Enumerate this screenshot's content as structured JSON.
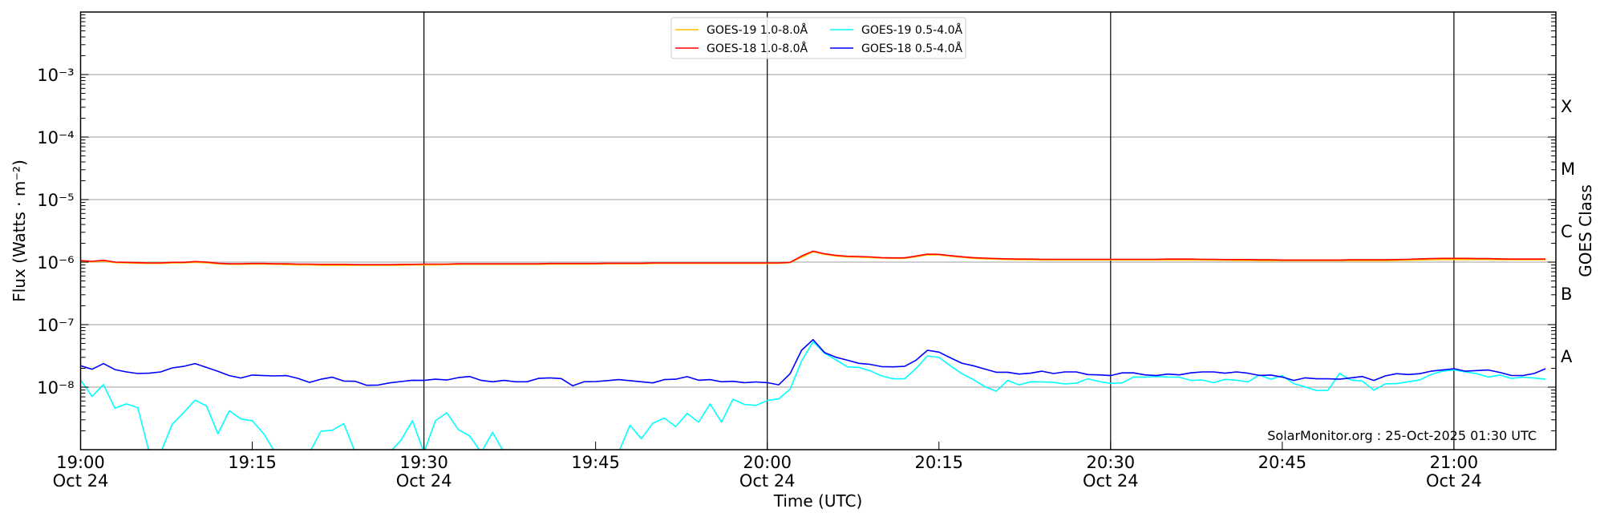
{
  "chart_data": {
    "type": "line",
    "xlabel": "Time (UTC)",
    "ylabel": "Flux (Watts · m⁻²)",
    "right_ylabel": "GOES Class",
    "y_scale": "log",
    "ylim": [
      1e-09,
      0.01
    ],
    "xlim": [
      "19:00",
      "21:09"
    ],
    "grid": "horizontal gridlines at each decade; vertical black lines at half hours",
    "legend_position": "top-center",
    "xticks": [
      {
        "time": "19:00",
        "date": "Oct 24"
      },
      {
        "time": "19:15",
        "date": ""
      },
      {
        "time": "19:30",
        "date": "Oct 24"
      },
      {
        "time": "19:45",
        "date": ""
      },
      {
        "time": "20:00",
        "date": "Oct 24"
      },
      {
        "time": "20:15",
        "date": ""
      },
      {
        "time": "20:30",
        "date": "Oct 24"
      },
      {
        "time": "20:45",
        "date": ""
      },
      {
        "time": "21:00",
        "date": "Oct 24"
      }
    ],
    "vertical_lines": [
      "19:30",
      "20:00",
      "20:30",
      "21:00"
    ],
    "yticks": [
      {
        "value": 0.001,
        "label": "10⁻³"
      },
      {
        "value": 0.0001,
        "label": "10⁻⁴"
      },
      {
        "value": 1e-05,
        "label": "10⁻⁵"
      },
      {
        "value": 1e-06,
        "label": "10⁻⁶"
      },
      {
        "value": 1e-07,
        "label": "10⁻⁷"
      },
      {
        "value": 1e-08,
        "label": "10⁻⁸"
      }
    ],
    "goes_classes": [
      {
        "label": "X",
        "value": 0.000316
      },
      {
        "label": "M",
        "value": 3.16e-05
      },
      {
        "label": "C",
        "value": 3.16e-06
      },
      {
        "label": "B",
        "value": 3.16e-07
      },
      {
        "label": "A",
        "value": 3.16e-08
      }
    ],
    "annotation": "SolarMonitor.org : 25-Oct-2025 01:30 UTC",
    "x": [
      "19:00",
      "19:01",
      "19:02",
      "19:03",
      "19:04",
      "19:05",
      "19:06",
      "19:07",
      "19:08",
      "19:09",
      "19:10",
      "19:11",
      "19:12",
      "19:13",
      "19:14",
      "19:15",
      "19:16",
      "19:17",
      "19:18",
      "19:19",
      "19:20",
      "19:21",
      "19:22",
      "19:23",
      "19:24",
      "19:25",
      "19:26",
      "19:27",
      "19:28",
      "19:29",
      "19:30",
      "19:31",
      "19:32",
      "19:33",
      "19:34",
      "19:35",
      "19:36",
      "19:37",
      "19:38",
      "19:39",
      "19:40",
      "19:41",
      "19:42",
      "19:43",
      "19:44",
      "19:45",
      "19:46",
      "19:47",
      "19:48",
      "19:49",
      "19:50",
      "19:51",
      "19:52",
      "19:53",
      "19:54",
      "19:55",
      "19:56",
      "19:57",
      "19:58",
      "19:59",
      "20:00",
      "20:01",
      "20:02",
      "20:03",
      "20:04",
      "20:05",
      "20:06",
      "20:07",
      "20:08",
      "20:09",
      "20:10",
      "20:11",
      "20:12",
      "20:13",
      "20:14",
      "20:15",
      "20:16",
      "20:17",
      "20:18",
      "20:19",
      "20:20",
      "20:21",
      "20:22",
      "20:23",
      "20:24",
      "20:25",
      "20:26",
      "20:27",
      "20:28",
      "20:29",
      "20:30",
      "20:31",
      "20:32",
      "20:33",
      "20:34",
      "20:35",
      "20:36",
      "20:37",
      "20:38",
      "20:39",
      "20:40",
      "20:41",
      "20:42",
      "20:43",
      "20:44",
      "20:45",
      "20:46",
      "20:47",
      "20:48",
      "20:49",
      "20:50",
      "20:51",
      "20:52",
      "20:53",
      "20:54",
      "20:55",
      "20:56",
      "20:57",
      "20:58",
      "20:59",
      "21:00",
      "21:01",
      "21:02",
      "21:03",
      "21:04",
      "21:05",
      "21:06",
      "21:07",
      "21:08"
    ],
    "series": [
      {
        "name": "GOES-19 1.0-8.0Å",
        "color": "#ffc000",
        "values": [
          1.03e-06,
          1.01e-06,
          1.04e-06,
          9.8e-07,
          9.7e-07,
          9.6e-07,
          9.5e-07,
          9.5e-07,
          9.7e-07,
          9.7e-07,
          9.9e-07,
          9.7e-07,
          9.4e-07,
          9.2e-07,
          9.2e-07,
          9.3e-07,
          9.3e-07,
          9.2e-07,
          9.1e-07,
          9e-07,
          9e-07,
          8.9e-07,
          8.9e-07,
          8.9e-07,
          8.9e-07,
          8.9e-07,
          8.9e-07,
          8.9e-07,
          8.9e-07,
          9e-07,
          9e-07,
          9e-07,
          9.1e-07,
          9.2e-07,
          9.2e-07,
          9.2e-07,
          9.2e-07,
          9.2e-07,
          9.2e-07,
          9.2e-07,
          9.2e-07,
          9.3e-07,
          9.3e-07,
          9.3e-07,
          9.3e-07,
          9.3e-07,
          9.4e-07,
          9.4e-07,
          9.4e-07,
          9.4e-07,
          9.5e-07,
          9.5e-07,
          9.5e-07,
          9.5e-07,
          9.5e-07,
          9.5e-07,
          9.5e-07,
          9.5e-07,
          9.5e-07,
          9.5e-07,
          9.5e-07,
          9.6e-07,
          9.8e-07,
          1.2e-06,
          1.46e-06,
          1.33e-06,
          1.25e-06,
          1.21e-06,
          1.2e-06,
          1.18e-06,
          1.16e-06,
          1.15e-06,
          1.15e-06,
          1.22e-06,
          1.31e-06,
          1.3e-06,
          1.24e-06,
          1.19e-06,
          1.15e-06,
          1.13e-06,
          1.11e-06,
          1.1e-06,
          1.09e-06,
          1.09e-06,
          1.08e-06,
          1.08e-06,
          1.08e-06,
          1.08e-06,
          1.08e-06,
          1.08e-06,
          1.08e-06,
          1.08e-06,
          1.08e-06,
          1.08e-06,
          1.08e-06,
          1.08e-06,
          1.08e-06,
          1.08e-06,
          1.08e-06,
          1.07e-06,
          1.07e-06,
          1.06e-06,
          1.06e-06,
          1.05e-06,
          1.05e-06,
          1.05e-06,
          1.05e-06,
          1.05e-06,
          1.05e-06,
          1.05e-06,
          1.05e-06,
          1.05e-06,
          1.05e-06,
          1.05e-06,
          1.05e-06,
          1.06e-06,
          1.07e-06,
          1.08e-06,
          1.09e-06,
          1.1e-06,
          1.1e-06,
          1.1e-06,
          1.1e-06,
          1.1e-06,
          1.09e-06,
          1.09e-06,
          1.09e-06,
          1.09e-06,
          1.09e-06
        ]
      },
      {
        "name": "GOES-18 1.0-8.0Å",
        "color": "#ff0000",
        "values": [
          1.06e-06,
          1.03e-06,
          1.07e-06,
          1e-06,
          9.9e-07,
          9.8e-07,
          9.7e-07,
          9.7e-07,
          9.9e-07,
          9.9e-07,
          1.02e-06,
          1e-06,
          9.6e-07,
          9.4e-07,
          9.4e-07,
          9.5e-07,
          9.5e-07,
          9.4e-07,
          9.4e-07,
          9.3e-07,
          9.3e-07,
          9.2e-07,
          9.2e-07,
          9.2e-07,
          9.1e-07,
          9.1e-07,
          9.1e-07,
          9.1e-07,
          9.2e-07,
          9.2e-07,
          9.3e-07,
          9.3e-07,
          9.3e-07,
          9.4e-07,
          9.4e-07,
          9.4e-07,
          9.4e-07,
          9.4e-07,
          9.4e-07,
          9.4e-07,
          9.4e-07,
          9.5e-07,
          9.5e-07,
          9.5e-07,
          9.5e-07,
          9.5e-07,
          9.6e-07,
          9.6e-07,
          9.6e-07,
          9.6e-07,
          9.7e-07,
          9.7e-07,
          9.7e-07,
          9.7e-07,
          9.7e-07,
          9.7e-07,
          9.7e-07,
          9.7e-07,
          9.7e-07,
          9.7e-07,
          9.7e-07,
          9.7e-07,
          9.9e-07,
          1.25e-06,
          1.5e-06,
          1.36e-06,
          1.28e-06,
          1.24e-06,
          1.23e-06,
          1.21e-06,
          1.18e-06,
          1.17e-06,
          1.17e-06,
          1.25e-06,
          1.34e-06,
          1.33e-06,
          1.27e-06,
          1.22e-06,
          1.18e-06,
          1.16e-06,
          1.14e-06,
          1.13e-06,
          1.12e-06,
          1.12e-06,
          1.11e-06,
          1.11e-06,
          1.11e-06,
          1.11e-06,
          1.11e-06,
          1.11e-06,
          1.11e-06,
          1.11e-06,
          1.11e-06,
          1.11e-06,
          1.11e-06,
          1.12e-06,
          1.12e-06,
          1.12e-06,
          1.11e-06,
          1.11e-06,
          1.1e-06,
          1.1e-06,
          1.1e-06,
          1.09e-06,
          1.09e-06,
          1.08e-06,
          1.08e-06,
          1.08e-06,
          1.08e-06,
          1.08e-06,
          1.08e-06,
          1.09e-06,
          1.09e-06,
          1.09e-06,
          1.09e-06,
          1.1e-06,
          1.11e-06,
          1.13e-06,
          1.14e-06,
          1.15e-06,
          1.15e-06,
          1.15e-06,
          1.14e-06,
          1.14e-06,
          1.13e-06,
          1.12e-06,
          1.12e-06,
          1.12e-06,
          1.12e-06
        ]
      },
      {
        "name": "GOES-19 0.5-4.0Å",
        "color": "#00ffff",
        "values": [
          1.3e-08,
          7.1e-09,
          1.1e-08,
          4.6e-09,
          5.4e-09,
          4.7e-09,
          5e-10,
          5e-10,
          2.55e-09,
          3.9e-09,
          6.2e-09,
          5e-09,
          1.8e-09,
          4.2e-09,
          3.1e-09,
          2.9e-09,
          1.8e-09,
          5e-10,
          5e-10,
          5e-10,
          5e-10,
          1.97e-09,
          2.05e-09,
          2.6e-09,
          5e-10,
          5e-10,
          5e-10,
          5e-10,
          1.43e-09,
          2.9e-09,
          5e-10,
          2.9e-09,
          3.9e-09,
          2.1e-09,
          1.65e-09,
          5e-10,
          1.9e-09,
          5e-10,
          5e-10,
          5e-10,
          5e-10,
          5e-10,
          5e-10,
          5e-10,
          5e-10,
          5e-10,
          5e-10,
          5e-10,
          2.45e-09,
          1.5e-09,
          2.65e-09,
          3.2e-09,
          2.35e-09,
          3.8e-09,
          2.75e-09,
          5.4e-09,
          2.75e-09,
          6.4e-09,
          5.3e-09,
          5.1e-09,
          6.1e-09,
          6.5e-09,
          9.3e-09,
          2.62e-08,
          5.33e-08,
          3.49e-08,
          2.73e-08,
          2.11e-08,
          2.07e-08,
          1.82e-08,
          1.51e-08,
          1.36e-08,
          1.36e-08,
          1.99e-08,
          3.16e-08,
          2.98e-08,
          2.2e-08,
          1.64e-08,
          1.32e-08,
          1.02e-08,
          8.6e-09,
          1.28e-08,
          1.09e-08,
          1.22e-08,
          1.21e-08,
          1.19e-08,
          1.13e-08,
          1.16e-08,
          1.36e-08,
          1.23e-08,
          1.15e-08,
          1.17e-08,
          1.45e-08,
          1.44e-08,
          1.48e-08,
          1.45e-08,
          1.44e-08,
          1.28e-08,
          1.3e-08,
          1.18e-08,
          1.33e-08,
          1.29e-08,
          1.21e-08,
          1.57e-08,
          1.34e-08,
          1.53e-08,
          1.14e-08,
          1.01e-08,
          8.8e-09,
          8.9e-09,
          1.65e-08,
          1.3e-08,
          1.25e-08,
          8.9e-09,
          1.13e-08,
          1.14e-08,
          1.22e-08,
          1.3e-08,
          1.6e-08,
          1.8e-08,
          1.88e-08,
          1.75e-08,
          1.64e-08,
          1.45e-08,
          1.56e-08,
          1.38e-08,
          1.44e-08,
          1.4e-08,
          1.34e-08
        ]
      },
      {
        "name": "GOES-18 0.5-4.0Å",
        "color": "#0000ff",
        "values": [
          2.2e-08,
          1.93e-08,
          2.38e-08,
          1.91e-08,
          1.75e-08,
          1.65e-08,
          1.67e-08,
          1.75e-08,
          2.03e-08,
          2.15e-08,
          2.38e-08,
          2.07e-08,
          1.79e-08,
          1.53e-08,
          1.4e-08,
          1.56e-08,
          1.53e-08,
          1.51e-08,
          1.53e-08,
          1.38e-08,
          1.19e-08,
          1.34e-08,
          1.44e-08,
          1.25e-08,
          1.24e-08,
          1.07e-08,
          1.08e-08,
          1.17e-08,
          1.23e-08,
          1.29e-08,
          1.28e-08,
          1.34e-08,
          1.3e-08,
          1.42e-08,
          1.48e-08,
          1.28e-08,
          1.22e-08,
          1.28e-08,
          1.22e-08,
          1.22e-08,
          1.38e-08,
          1.41e-08,
          1.37e-08,
          1.05e-08,
          1.22e-08,
          1.23e-08,
          1.27e-08,
          1.32e-08,
          1.27e-08,
          1.22e-08,
          1.17e-08,
          1.32e-08,
          1.34e-08,
          1.47e-08,
          1.29e-08,
          1.32e-08,
          1.22e-08,
          1.24e-08,
          1.18e-08,
          1.21e-08,
          1.18e-08,
          1.09e-08,
          1.64e-08,
          3.89e-08,
          5.76e-08,
          3.59e-08,
          3.01e-08,
          2.7e-08,
          2.4e-08,
          2.31e-08,
          2.13e-08,
          2.11e-08,
          2.15e-08,
          2.7e-08,
          3.89e-08,
          3.63e-08,
          2.95e-08,
          2.42e-08,
          2.2e-08,
          1.95e-08,
          1.73e-08,
          1.73e-08,
          1.62e-08,
          1.67e-08,
          1.8e-08,
          1.65e-08,
          1.75e-08,
          1.75e-08,
          1.59e-08,
          1.57e-08,
          1.53e-08,
          1.69e-08,
          1.69e-08,
          1.57e-08,
          1.53e-08,
          1.62e-08,
          1.57e-08,
          1.69e-08,
          1.75e-08,
          1.75e-08,
          1.67e-08,
          1.75e-08,
          1.67e-08,
          1.54e-08,
          1.56e-08,
          1.45e-08,
          1.28e-08,
          1.41e-08,
          1.36e-08,
          1.36e-08,
          1.34e-08,
          1.41e-08,
          1.48e-08,
          1.28e-08,
          1.51e-08,
          1.64e-08,
          1.59e-08,
          1.64e-08,
          1.8e-08,
          1.88e-08,
          1.97e-08,
          1.8e-08,
          1.84e-08,
          1.88e-08,
          1.72e-08,
          1.54e-08,
          1.53e-08,
          1.65e-08,
          1.97e-08
        ]
      }
    ]
  }
}
